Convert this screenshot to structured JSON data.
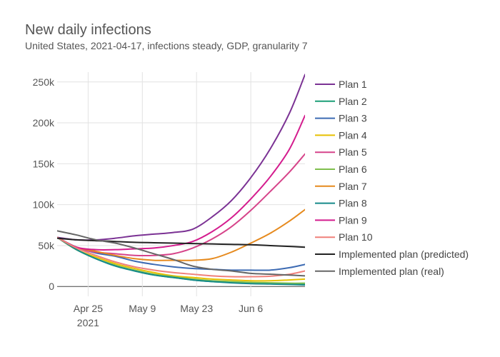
{
  "title": "New daily infections",
  "subtitle": "United States, 2021-04-17, infections steady, GDP, granularity 7",
  "chart_data": {
    "type": "line",
    "title": "New daily infections",
    "subtitle": "United States, 2021-04-17, infections steady, GDP, granularity 7",
    "xlabel": "",
    "ylabel": "",
    "x_axis": {
      "type": "date",
      "range": [
        "2021-04-17",
        "2021-06-20"
      ],
      "ticks": [
        "2021-04-25",
        "2021-05-09",
        "2021-05-23",
        "2021-06-06"
      ],
      "tick_labels": [
        "Apr 25",
        "May 9",
        "May 23",
        "Jun 6"
      ],
      "year_label": "2021"
    },
    "y_axis": {
      "range": [
        -12000,
        262000
      ],
      "ticks": [
        0,
        50000,
        100000,
        150000,
        200000,
        250000
      ],
      "tick_labels": [
        "0",
        "50k",
        "100k",
        "150k",
        "200k",
        "250k"
      ]
    },
    "grid": true,
    "legend_position": "right",
    "x": [
      "2021-04-17",
      "2021-04-22",
      "2021-04-27",
      "2021-05-02",
      "2021-05-07",
      "2021-05-12",
      "2021-05-17",
      "2021-05-22",
      "2021-05-27",
      "2021-06-01",
      "2021-06-06",
      "2021-06-11",
      "2021-06-16",
      "2021-06-20"
    ],
    "series": [
      {
        "name": "Plan 1",
        "color": "#7b3294",
        "values": [
          60000,
          57000,
          57000,
          59000,
          62000,
          64000,
          66000,
          70000,
          85000,
          105000,
          133000,
          168000,
          212000,
          259000
        ]
      },
      {
        "name": "Plan 2",
        "color": "#1b9e77",
        "values": [
          60000,
          45000,
          34000,
          26000,
          19000,
          14000,
          11000,
          8000,
          6000,
          5000,
          4000,
          3500,
          3000,
          3000
        ]
      },
      {
        "name": "Plan 3",
        "color": "#3d6bb3",
        "values": [
          60000,
          48000,
          41000,
          37000,
          31000,
          27000,
          24000,
          22000,
          21000,
          20000,
          20000,
          20000,
          23000,
          27000
        ]
      },
      {
        "name": "Plan 4",
        "color": "#e6c000",
        "values": [
          60000,
          45000,
          36000,
          28000,
          22000,
          17000,
          13000,
          11000,
          9000,
          8000,
          7000,
          7000,
          8000,
          9000
        ]
      },
      {
        "name": "Plan 5",
        "color": "#d6448a",
        "values": [
          60000,
          47000,
          42000,
          40000,
          38000,
          38000,
          40000,
          47000,
          58000,
          73000,
          93000,
          116000,
          140000,
          162000
        ]
      },
      {
        "name": "Plan 6",
        "color": "#7fbf4d",
        "values": [
          60000,
          45000,
          34000,
          26000,
          20000,
          15000,
          12000,
          9000,
          7000,
          6000,
          5000,
          4500,
          4000,
          4000
        ]
      },
      {
        "name": "Plan 7",
        "color": "#e68a1e",
        "values": [
          60000,
          48000,
          43000,
          38000,
          34000,
          32000,
          32000,
          32000,
          34000,
          42000,
          53000,
          65000,
          80000,
          94000
        ]
      },
      {
        "name": "Plan 8",
        "color": "#168a8a",
        "values": [
          60000,
          45000,
          34000,
          25000,
          19000,
          14000,
          11000,
          8000,
          6000,
          4500,
          3500,
          3000,
          2500,
          2000
        ]
      },
      {
        "name": "Plan 9",
        "color": "#d41c8e",
        "values": [
          60000,
          48000,
          45000,
          45000,
          46000,
          47000,
          50000,
          55000,
          67000,
          84000,
          107000,
          134000,
          168000,
          209000
        ]
      },
      {
        "name": "Plan 10",
        "color": "#f0807a",
        "values": [
          60000,
          47000,
          38000,
          30000,
          24000,
          20000,
          17000,
          15000,
          13000,
          12000,
          12000,
          12500,
          15000,
          19000
        ]
      },
      {
        "name": "Implemented plan (predicted)",
        "color": "#222222",
        "values": [
          59000,
          57000,
          56000,
          55000,
          54000,
          53500,
          53000,
          52500,
          52000,
          51500,
          51000,
          50000,
          49000,
          48000
        ]
      },
      {
        "name": "Implemented plan (real)",
        "color": "#666666",
        "values": [
          68000,
          63000,
          57000,
          53000,
          47000,
          40000,
          33000,
          25000,
          21000,
          19000,
          16000,
          15000,
          14000,
          13000
        ]
      }
    ]
  }
}
